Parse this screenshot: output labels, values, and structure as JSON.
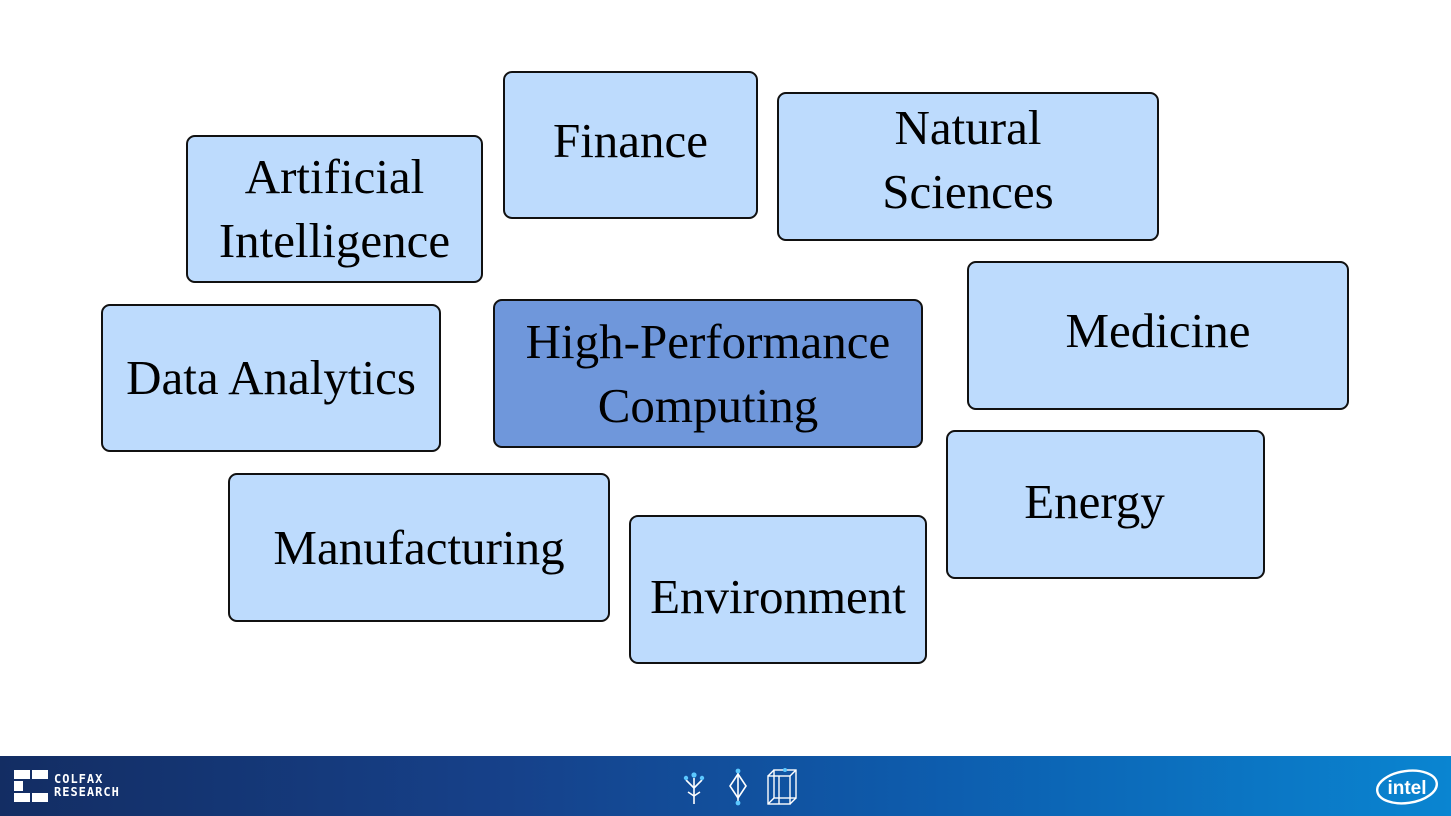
{
  "domains": {
    "artificial_intelligence": "Artificial\nIntelligence",
    "finance": "Finance",
    "natural_sciences": "Natural\nSciences",
    "data_analytics": "Data Analytics",
    "hpc": "High-Performance\nComputing",
    "medicine": "Medicine",
    "energy": "Energy",
    "manufacturing": "Manufacturing",
    "environment": "Environment"
  },
  "footer": {
    "colfax_line1": "COLFAX",
    "colfax_line2": "RESEARCH",
    "intel_logo_text": "intel"
  },
  "colors": {
    "box_fill": "#bddbfd",
    "center_box_fill": "#6f97db",
    "border": "#111111",
    "footer_start": "#132d63",
    "footer_end": "#0a85d1"
  },
  "icons": [
    "colfax-logo-icon",
    "tree-circuit-icon",
    "diamond-node-icon",
    "cube-wireframe-icon",
    "intel-logo-icon"
  ]
}
